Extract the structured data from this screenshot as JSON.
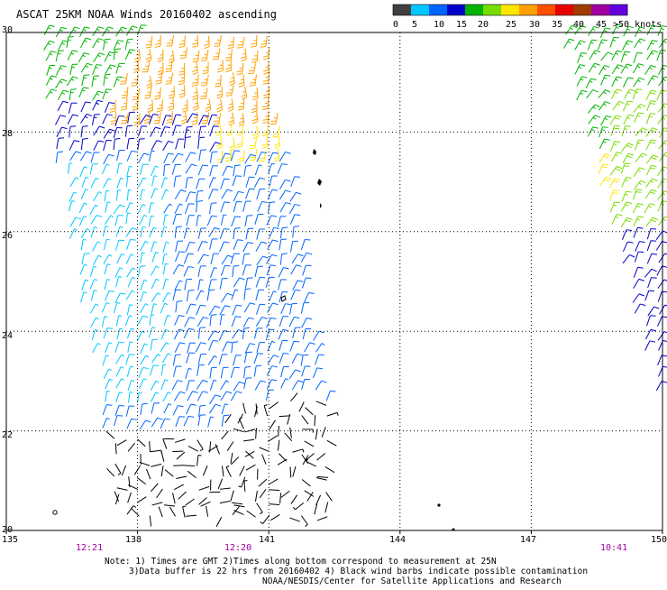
{
  "title": "ASCAT 25KM NOAA Winds 20160402 ascending",
  "legend": {
    "ticks": [
      "0",
      "5",
      "10",
      "15",
      "20",
      "25",
      "30",
      "35",
      "40",
      "45",
      ">50 knots"
    ],
    "colors": [
      "#404040",
      "#00c8ff",
      "#0064ff",
      "#0000c8",
      "#00b400",
      "#78dc00",
      "#ffe600",
      "#ffa000",
      "#ff5000",
      "#e60000",
      "#a03c00",
      "#a000a0",
      "#6400dc"
    ]
  },
  "lat_labels": [
    "30",
    "28",
    "26",
    "24",
    "22",
    "20"
  ],
  "lon_labels": [
    "135",
    "138",
    "141",
    "144",
    "147",
    "150"
  ],
  "times": [
    {
      "label": "12:21",
      "lon": 136.8
    },
    {
      "label": "12:20",
      "lon": 140.3
    },
    {
      "label": "10:41",
      "lon": 149.2
    }
  ],
  "notes": [
    "Note: 1) Times are GMT 2)Times along bottom correspond to measurement at 25N",
    "3)Data buffer is 22 hrs from 20160402 4) Black wind barbs indicate possible contamination",
    "NOAA/NESDIS/Center for Satellite Applications and Research"
  ],
  "map_extent": {
    "lon": [
      135,
      150
    ],
    "lat": [
      20,
      30
    ]
  },
  "swaths": [
    {
      "name": "western-swath",
      "corners_lonlat": [
        [
          135.6,
          30.0
        ],
        [
          141.0,
          30.0
        ],
        [
          142.8,
          20.0
        ],
        [
          137.6,
          20.0
        ]
      ],
      "regions": [
        {
          "lat": [
            28.2,
            30.0
          ],
          "speed_knots": 27,
          "color": "#ffa000",
          "part": "east"
        },
        {
          "lat": [
            27.6,
            28.6
          ],
          "speed_knots": 22,
          "color": "#ffe600",
          "part": "east"
        },
        {
          "lat": [
            28.6,
            30.0
          ],
          "speed_knots": 17,
          "color": "#00b400",
          "part": "west"
        },
        {
          "lat": [
            27.5,
            29.0
          ],
          "speed_knots": 13,
          "color": "#0000c8",
          "part": "west"
        },
        {
          "lat": [
            22.0,
            28.0
          ],
          "speed_knots": 11,
          "color": "#0064ff",
          "part": "all"
        },
        {
          "lat": [
            22.0,
            27.0
          ],
          "speed_knots": 8,
          "color": "#00c8ff",
          "part": "west"
        },
        {
          "lat": [
            20.0,
            22.0
          ],
          "speed_knots": 3,
          "color": "#000000",
          "part": "all"
        }
      ]
    },
    {
      "name": "eastern-swath",
      "corners_lonlat": [
        [
          147.6,
          30.0
        ],
        [
          150.0,
          30.0
        ],
        [
          150.0,
          22.6
        ],
        [
          149.9,
          22.6
        ]
      ],
      "regions": [
        {
          "lat": [
            26.0,
            30.0
          ],
          "speed_knots": 16,
          "color": "#00b400"
        },
        {
          "lat": [
            26.6,
            27.6
          ],
          "speed_knots": 22,
          "color": "#ffe600"
        },
        {
          "lat": [
            26.0,
            28.8
          ],
          "speed_knots": 19,
          "color": "#78dc00"
        },
        {
          "lat": [
            22.6,
            26.0
          ],
          "speed_knots": 12,
          "color": "#0000c8"
        }
      ]
    }
  ]
}
